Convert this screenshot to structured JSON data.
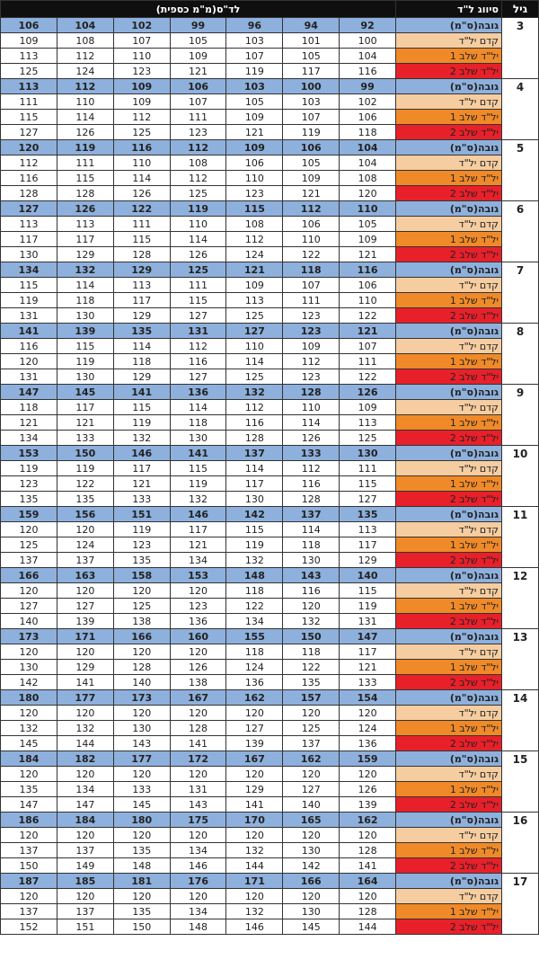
{
  "header": {
    "age_label": "גיל",
    "class_label": "סיווג ל\"ד",
    "bp_label": "לד\"ס(מ\"מ כספית)"
  },
  "colors": {
    "header_bg": "#0f0f0f",
    "height_row": "#8eb0dc",
    "pre_hypertension": "#f6cda0",
    "stage1": "#f08a28",
    "stage2": "#e8202a"
  },
  "row_labels": [
    "גובה(ס\"מ)",
    "קדם יל\"ד",
    "יל\"ד שלב 1",
    "יל\"ד שלב 2"
  ],
  "groups": [
    {
      "age": "3",
      "rows": [
        [
          "92",
          "94",
          "96",
          "99",
          "102",
          "104",
          "106"
        ],
        [
          "100",
          "101",
          "103",
          "105",
          "107",
          "108",
          "109"
        ],
        [
          "104",
          "105",
          "107",
          "109",
          "110",
          "112",
          "113"
        ],
        [
          "116",
          "117",
          "119",
          "121",
          "123",
          "124",
          "125"
        ]
      ]
    },
    {
      "age": "4",
      "rows": [
        [
          "99",
          "100",
          "103",
          "106",
          "109",
          "112",
          "113"
        ],
        [
          "102",
          "103",
          "105",
          "107",
          "109",
          "110",
          "111"
        ],
        [
          "106",
          "107",
          "109",
          "111",
          "112",
          "114",
          "115"
        ],
        [
          "118",
          "119",
          "121",
          "123",
          "125",
          "126",
          "127"
        ]
      ]
    },
    {
      "age": "5",
      "rows": [
        [
          "104",
          "106",
          "109",
          "112",
          "116",
          "119",
          "120"
        ],
        [
          "104",
          "105",
          "106",
          "108",
          "110",
          "111",
          "112"
        ],
        [
          "108",
          "109",
          "110",
          "112",
          "114",
          "115",
          "116"
        ],
        [
          "120",
          "121",
          "123",
          "125",
          "126",
          "128",
          "128"
        ]
      ]
    },
    {
      "age": "6",
      "rows": [
        [
          "110",
          "112",
          "115",
          "119",
          "122",
          "126",
          "127"
        ],
        [
          "105",
          "106",
          "108",
          "110",
          "111",
          "113",
          "113"
        ],
        [
          "109",
          "110",
          "112",
          "114",
          "115",
          "117",
          "117"
        ],
        [
          "121",
          "122",
          "124",
          "126",
          "128",
          "129",
          "130"
        ]
      ]
    },
    {
      "age": "7",
      "rows": [
        [
          "116",
          "118",
          "121",
          "125",
          "129",
          "132",
          "134"
        ],
        [
          "106",
          "107",
          "109",
          "111",
          "113",
          "114",
          "115"
        ],
        [
          "110",
          "111",
          "113",
          "115",
          "117",
          "118",
          "119"
        ],
        [
          "122",
          "123",
          "125",
          "127",
          "129",
          "130",
          "131"
        ]
      ]
    },
    {
      "age": "8",
      "rows": [
        [
          "121",
          "123",
          "127",
          "131",
          "135",
          "139",
          "141"
        ],
        [
          "107",
          "109",
          "110",
          "112",
          "114",
          "115",
          "116"
        ],
        [
          "111",
          "112",
          "114",
          "116",
          "118",
          "119",
          "120"
        ],
        [
          "122",
          "123",
          "125",
          "127",
          "129",
          "130",
          "131"
        ]
      ]
    },
    {
      "age": "9",
      "rows": [
        [
          "126",
          "128",
          "132",
          "136",
          "141",
          "145",
          "147"
        ],
        [
          "109",
          "110",
          "112",
          "114",
          "115",
          "117",
          "118"
        ],
        [
          "113",
          "114",
          "116",
          "118",
          "119",
          "121",
          "121"
        ],
        [
          "125",
          "126",
          "128",
          "130",
          "132",
          "133",
          "134"
        ]
      ]
    },
    {
      "age": "10",
      "rows": [
        [
          "130",
          "133",
          "137",
          "141",
          "146",
          "150",
          "153"
        ],
        [
          "111",
          "112",
          "114",
          "115",
          "117",
          "119",
          "119"
        ],
        [
          "115",
          "116",
          "117",
          "119",
          "121",
          "122",
          "123"
        ],
        [
          "127",
          "128",
          "130",
          "132",
          "133",
          "135",
          "135"
        ]
      ]
    },
    {
      "age": "11",
      "rows": [
        [
          "135",
          "137",
          "142",
          "146",
          "151",
          "156",
          "159"
        ],
        [
          "113",
          "114",
          "115",
          "117",
          "119",
          "120",
          "120"
        ],
        [
          "117",
          "118",
          "119",
          "121",
          "123",
          "124",
          "125"
        ],
        [
          "129",
          "130",
          "132",
          "134",
          "135",
          "137",
          "137"
        ]
      ]
    },
    {
      "age": "12",
      "rows": [
        [
          "140",
          "143",
          "148",
          "153",
          "158",
          "163",
          "166"
        ],
        [
          "115",
          "116",
          "118",
          "120",
          "120",
          "120",
          "120"
        ],
        [
          "119",
          "120",
          "122",
          "123",
          "125",
          "127",
          "127"
        ],
        [
          "131",
          "132",
          "134",
          "136",
          "138",
          "139",
          "140"
        ]
      ]
    },
    {
      "age": "13",
      "rows": [
        [
          "147",
          "150",
          "155",
          "160",
          "166",
          "171",
          "173"
        ],
        [
          "117",
          "118",
          "118",
          "120",
          "120",
          "120",
          "120"
        ],
        [
          "121",
          "122",
          "124",
          "126",
          "128",
          "129",
          "130"
        ],
        [
          "133",
          "135",
          "136",
          "138",
          "140",
          "141",
          "142"
        ]
      ]
    },
    {
      "age": "14",
      "rows": [
        [
          "154",
          "157",
          "162",
          "167",
          "173",
          "177",
          "180"
        ],
        [
          "120",
          "120",
          "120",
          "120",
          "120",
          "120",
          "120"
        ],
        [
          "124",
          "125",
          "127",
          "128",
          "130",
          "132",
          "132"
        ],
        [
          "136",
          "137",
          "139",
          "141",
          "143",
          "144",
          "145"
        ]
      ]
    },
    {
      "age": "15",
      "rows": [
        [
          "159",
          "162",
          "167",
          "172",
          "177",
          "182",
          "184"
        ],
        [
          "120",
          "120",
          "120",
          "120",
          "120",
          "120",
          "120"
        ],
        [
          "126",
          "127",
          "129",
          "131",
          "133",
          "134",
          "135"
        ],
        [
          "139",
          "140",
          "141",
          "143",
          "145",
          "147",
          "147"
        ]
      ]
    },
    {
      "age": "16",
      "rows": [
        [
          "162",
          "165",
          "170",
          "175",
          "180",
          "184",
          "186"
        ],
        [
          "120",
          "120",
          "120",
          "120",
          "120",
          "120",
          "120"
        ],
        [
          "128",
          "130",
          "132",
          "134",
          "135",
          "137",
          "137"
        ],
        [
          "141",
          "142",
          "144",
          "146",
          "148",
          "149",
          "150"
        ]
      ]
    },
    {
      "age": "17",
      "rows": [
        [
          "164",
          "166",
          "171",
          "176",
          "181",
          "185",
          "187"
        ],
        [
          "120",
          "120",
          "120",
          "120",
          "120",
          "120",
          "120"
        ],
        [
          "128",
          "130",
          "132",
          "134",
          "135",
          "137",
          "137"
        ],
        [
          "144",
          "145",
          "146",
          "148",
          "150",
          "151",
          "152"
        ]
      ]
    }
  ]
}
